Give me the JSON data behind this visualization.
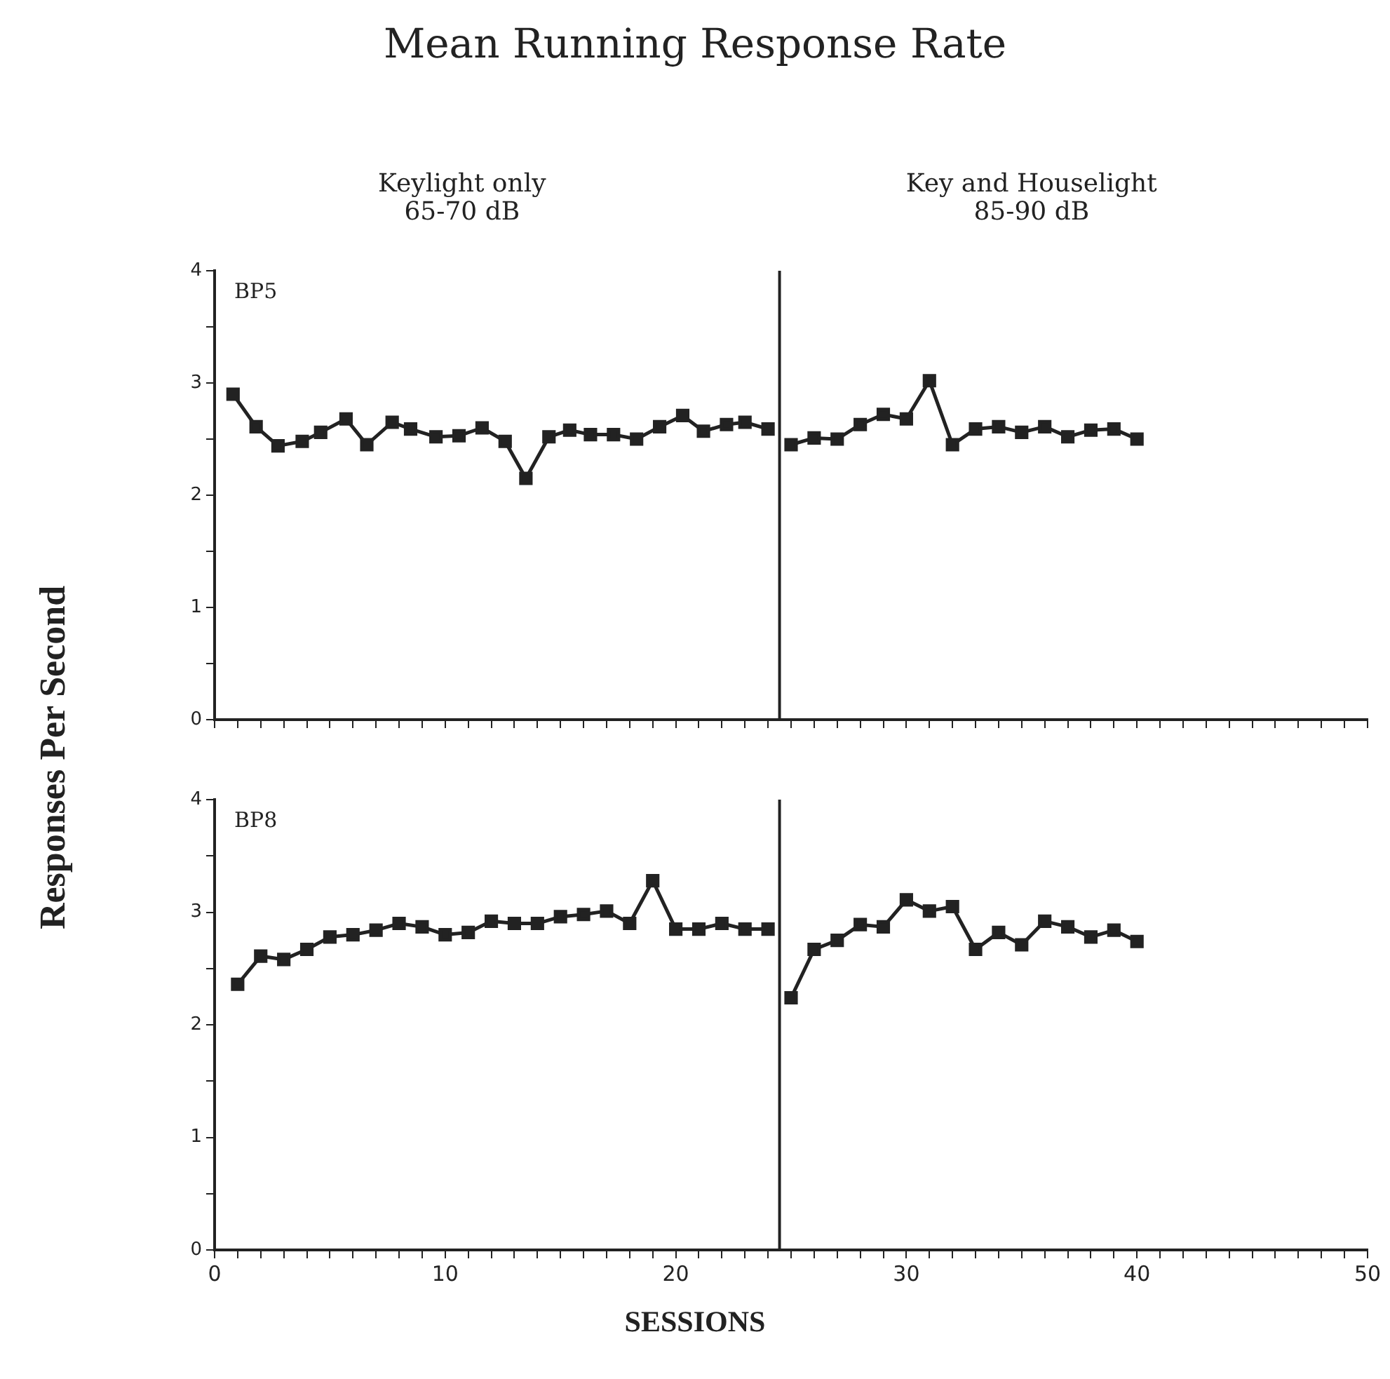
{
  "chart_data": [
    {
      "type": "line",
      "title": "Mean Running Response Rate",
      "ylabel": "Responses Per Second",
      "annotations": [
        "BP5",
        "Keylight only\n65-70 dB",
        "Key and Houselight\n85-90 dB"
      ],
      "series": [
        {
          "color": "#222222",
          "x": [
            0.8,
            1.8,
            2.75,
            3.8,
            4.6,
            5.7,
            6.6,
            7.7,
            8.5,
            9.6,
            10.6,
            11.6,
            12.6,
            13.5,
            14.5,
            15.4,
            16.3,
            17.3,
            18.3,
            19.3,
            20.3,
            21.2,
            22.2,
            23.0,
            24.0
          ],
          "values": [
            2.9,
            2.61,
            2.44,
            2.48,
            2.56,
            2.68,
            2.45,
            2.65,
            2.59,
            2.52,
            2.53,
            2.6,
            2.48,
            2.15,
            2.52,
            2.58,
            2.54,
            2.54,
            2.5,
            2.61,
            2.71,
            2.57,
            2.63,
            2.65,
            2.59
          ]
        },
        {
          "color": "#222222",
          "x": [
            25,
            26,
            27,
            28,
            29,
            30,
            31,
            32,
            33,
            34,
            35,
            36,
            37,
            38,
            39,
            40
          ],
          "values": [
            2.45,
            2.51,
            2.5,
            2.63,
            2.72,
            2.68,
            3.02,
            2.45,
            2.59,
            2.61,
            2.56,
            2.61,
            2.52,
            2.58,
            2.59,
            2.5
          ]
        }
      ],
      "xlim": [
        0,
        50
      ],
      "ylim": [
        0,
        4
      ],
      "xticks": [
        0,
        {
          "value": 1,
          "label": null
        },
        {
          "value": 2,
          "label": null
        },
        {
          "value": 3,
          "label": null
        },
        {
          "value": 4,
          "label": null
        },
        {
          "value": 5,
          "label": null
        },
        {
          "value": 6,
          "label": null
        },
        {
          "value": 7,
          "label": null
        },
        {
          "value": 8,
          "label": null
        },
        {
          "value": 9,
          "label": null
        },
        10,
        {
          "value": 11,
          "label": null
        },
        {
          "value": 12,
          "label": null
        },
        {
          "value": 13,
          "label": null
        },
        {
          "value": 14,
          "label": null
        },
        {
          "value": 15,
          "label": null
        },
        {
          "value": 16,
          "label": null
        },
        {
          "value": 17,
          "label": null
        },
        {
          "value": 18,
          "label": null
        },
        {
          "value": 19,
          "label": null
        },
        20,
        {
          "value": 21,
          "label": null
        },
        {
          "value": 22,
          "label": null
        },
        {
          "value": 23,
          "label": null
        },
        {
          "value": 24,
          "label": null
        },
        {
          "value": 25,
          "label": null
        },
        {
          "value": 26,
          "label": null
        },
        {
          "value": 27,
          "label": null
        },
        {
          "value": 28,
          "label": null
        },
        {
          "value": 29,
          "label": null
        },
        30,
        {
          "value": 31,
          "label": null
        },
        {
          "value": 32,
          "label": null
        },
        {
          "value": 33,
          "label": null
        },
        {
          "value": 34,
          "label": null
        },
        {
          "value": 35,
          "label": null
        },
        {
          "value": 36,
          "label": null
        },
        {
          "value": 37,
          "label": null
        },
        {
          "value": 38,
          "label": null
        },
        {
          "value": 39,
          "label": null
        },
        40,
        {
          "value": 41,
          "label": null
        },
        {
          "value": 42,
          "label": null
        },
        {
          "value": 43,
          "label": null
        },
        {
          "value": 44,
          "label": null
        },
        {
          "value": 45,
          "label": null
        },
        {
          "value": 46,
          "label": null
        },
        {
          "value": 47,
          "label": null
        },
        {
          "value": 48,
          "label": null
        },
        {
          "value": 49,
          "label": null
        },
        50
      ],
      "yticks": [
        0,
        {
          "value": 0.5,
          "label": null
        },
        1,
        {
          "value": 1.5,
          "label": null
        },
        2,
        {
          "value": 2.5,
          "label": null
        },
        3,
        {
          "value": 3.5,
          "label": null
        },
        4
      ],
      "tick_labels": "y",
      "marker": "square",
      "line_style": "solid",
      "ref_lines": [
        {
          "axis": "x",
          "value": 24.5,
          "color": "#222222"
        }
      ]
    },
    {
      "type": "line",
      "xlabel": "SESSIONS",
      "annotations": [
        "BP8"
      ],
      "series": [
        {
          "color": "#222222",
          "x": [
            1,
            2,
            3,
            4,
            5,
            6,
            7,
            8,
            9,
            10,
            11,
            12,
            13,
            14,
            15,
            16,
            17,
            18,
            19,
            20,
            21,
            22,
            23,
            24
          ],
          "values": [
            2.36,
            2.61,
            2.58,
            2.67,
            2.78,
            2.8,
            2.84,
            2.9,
            2.87,
            2.8,
            2.82,
            2.92,
            2.9,
            2.9,
            2.96,
            2.98,
            3.01,
            2.9,
            3.28,
            2.85,
            2.85,
            2.9,
            2.85,
            2.85
          ]
        },
        {
          "color": "#222222",
          "x": [
            25,
            26,
            27,
            28,
            29,
            30,
            31,
            32,
            33,
            34,
            35,
            36,
            37,
            38,
            39,
            40
          ],
          "values": [
            2.24,
            2.67,
            2.75,
            2.89,
            2.87,
            3.11,
            3.01,
            3.05,
            2.67,
            2.82,
            2.71,
            2.92,
            2.87,
            2.78,
            2.84,
            2.74
          ]
        }
      ],
      "xlim": [
        0,
        50
      ],
      "ylim": [
        0,
        4
      ],
      "xticks": [
        0,
        {
          "value": 1,
          "label": null
        },
        {
          "value": 2,
          "label": null
        },
        {
          "value": 3,
          "label": null
        },
        {
          "value": 4,
          "label": null
        },
        {
          "value": 5,
          "label": null
        },
        {
          "value": 6,
          "label": null
        },
        {
          "value": 7,
          "label": null
        },
        {
          "value": 8,
          "label": null
        },
        {
          "value": 9,
          "label": null
        },
        10,
        {
          "value": 11,
          "label": null
        },
        {
          "value": 12,
          "label": null
        },
        {
          "value": 13,
          "label": null
        },
        {
          "value": 14,
          "label": null
        },
        {
          "value": 15,
          "label": null
        },
        {
          "value": 16,
          "label": null
        },
        {
          "value": 17,
          "label": null
        },
        {
          "value": 18,
          "label": null
        },
        {
          "value": 19,
          "label": null
        },
        20,
        {
          "value": 21,
          "label": null
        },
        {
          "value": 22,
          "label": null
        },
        {
          "value": 23,
          "label": null
        },
        {
          "value": 24,
          "label": null
        },
        {
          "value": 25,
          "label": null
        },
        {
          "value": 26,
          "label": null
        },
        {
          "value": 27,
          "label": null
        },
        {
          "value": 28,
          "label": null
        },
        {
          "value": 29,
          "label": null
        },
        30,
        {
          "value": 31,
          "label": null
        },
        {
          "value": 32,
          "label": null
        },
        {
          "value": 33,
          "label": null
        },
        {
          "value": 34,
          "label": null
        },
        {
          "value": 35,
          "label": null
        },
        {
          "value": 36,
          "label": null
        },
        {
          "value": 37,
          "label": null
        },
        {
          "value": 38,
          "label": null
        },
        {
          "value": 39,
          "label": null
        },
        40,
        {
          "value": 41,
          "label": null
        },
        {
          "value": 42,
          "label": null
        },
        {
          "value": 43,
          "label": null
        },
        {
          "value": 44,
          "label": null
        },
        {
          "value": 45,
          "label": null
        },
        {
          "value": 46,
          "label": null
        },
        {
          "value": 47,
          "label": null
        },
        {
          "value": 48,
          "label": null
        },
        {
          "value": 49,
          "label": null
        },
        50
      ],
      "yticks": [
        0,
        {
          "value": 0.5,
          "label": null
        },
        1,
        {
          "value": 1.5,
          "label": null
        },
        2,
        {
          "value": 2.5,
          "label": null
        },
        3,
        {
          "value": 3.5,
          "label": null
        },
        4
      ],
      "marker": "square",
      "line_style": "solid",
      "ref_lines": [
        {
          "axis": "x",
          "value": 24.5,
          "color": "#222222"
        }
      ]
    }
  ]
}
